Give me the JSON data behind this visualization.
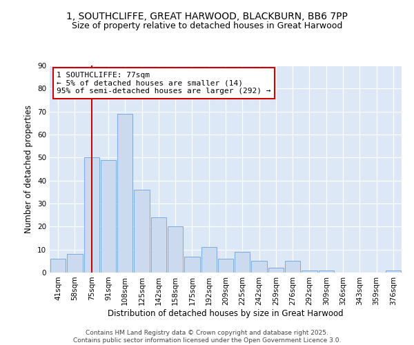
{
  "title1": "1, SOUTHCLIFFE, GREAT HARWOOD, BLACKBURN, BB6 7PP",
  "title2": "Size of property relative to detached houses in Great Harwood",
  "xlabel": "Distribution of detached houses by size in Great Harwood",
  "ylabel": "Number of detached properties",
  "categories": [
    "41sqm",
    "58sqm",
    "75sqm",
    "91sqm",
    "108sqm",
    "125sqm",
    "142sqm",
    "158sqm",
    "175sqm",
    "192sqm",
    "209sqm",
    "225sqm",
    "242sqm",
    "259sqm",
    "276sqm",
    "292sqm",
    "309sqm",
    "326sqm",
    "343sqm",
    "359sqm",
    "376sqm"
  ],
  "values": [
    6,
    8,
    50,
    49,
    69,
    36,
    24,
    20,
    7,
    11,
    6,
    9,
    5,
    2,
    5,
    1,
    1,
    0,
    0,
    0,
    1
  ],
  "bar_color": "#ccdaf0",
  "bar_edge_color": "#7aaadc",
  "highlight_index": 2,
  "highlight_line_color": "#cc0000",
  "annotation_text": "1 SOUTHCLIFFE: 77sqm\n← 5% of detached houses are smaller (14)\n95% of semi-detached houses are larger (292) →",
  "annotation_box_color": "#cc0000",
  "background_color": "#dce8f5",
  "ylim": [
    0,
    90
  ],
  "yticks": [
    0,
    10,
    20,
    30,
    40,
    50,
    60,
    70,
    80,
    90
  ],
  "footer": "Contains HM Land Registry data © Crown copyright and database right 2025.\nContains public sector information licensed under the Open Government Licence 3.0.",
  "title_fontsize": 10,
  "subtitle_fontsize": 9,
  "axis_label_fontsize": 8.5,
  "tick_fontsize": 7.5,
  "footer_fontsize": 6.5
}
